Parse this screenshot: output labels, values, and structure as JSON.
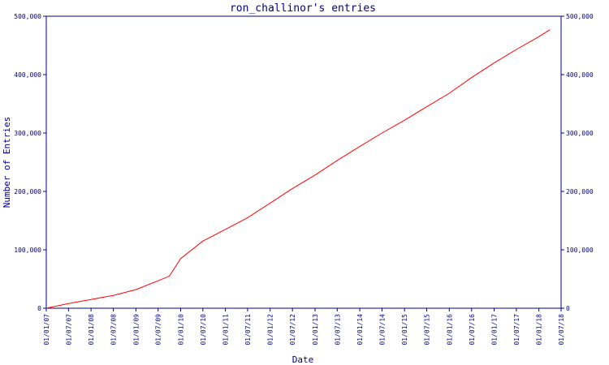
{
  "chart_data": {
    "type": "line",
    "title": "ron_challinor's entries",
    "xlabel": "Date",
    "ylabel": "Number of Entries",
    "ylim": [
      0,
      500000
    ],
    "y_ticks": [
      0,
      100000,
      200000,
      300000,
      400000,
      500000
    ],
    "y_tick_labels": [
      "0",
      "100,000",
      "200,000",
      "300,000",
      "400,000",
      "500,000"
    ],
    "right_axis_mirrors_left": true,
    "x_ticks": [
      "01/01/07",
      "01/07/07",
      "01/01/08",
      "01/07/08",
      "01/01/09",
      "01/07/09",
      "01/01/10",
      "01/07/10",
      "01/01/11",
      "01/07/11",
      "01/01/12",
      "01/07/12",
      "01/01/13",
      "01/07/13",
      "01/01/14",
      "01/07/14",
      "01/01/15",
      "01/07/15",
      "01/01/16",
      "01/07/16",
      "01/01/17",
      "01/07/17",
      "01/01/18",
      "01/07/18"
    ],
    "grid": false,
    "line_color": "#ff0000",
    "axis_color": "#000080",
    "series": [
      {
        "x": [
          "01/01/07",
          "01/07/07",
          "01/01/08",
          "01/07/08",
          "01/01/09",
          "01/07/09",
          "01/10/09",
          "01/01/10",
          "01/07/10",
          "01/01/11",
          "01/07/11",
          "01/01/12",
          "01/07/12",
          "01/01/13",
          "01/07/13",
          "01/01/14",
          "01/07/14",
          "01/01/15",
          "01/07/15",
          "01/01/16",
          "01/07/16",
          "01/01/17",
          "01/07/17",
          "01/01/18",
          "01/04/18"
        ],
        "values": [
          0,
          8000,
          15000,
          22000,
          32000,
          47000,
          55000,
          85000,
          115000,
          135000,
          155000,
          180000,
          205000,
          228000,
          253000,
          277000,
          300000,
          322000,
          345000,
          368000,
          395000,
          420000,
          443000,
          465000,
          477000
        ]
      }
    ]
  }
}
